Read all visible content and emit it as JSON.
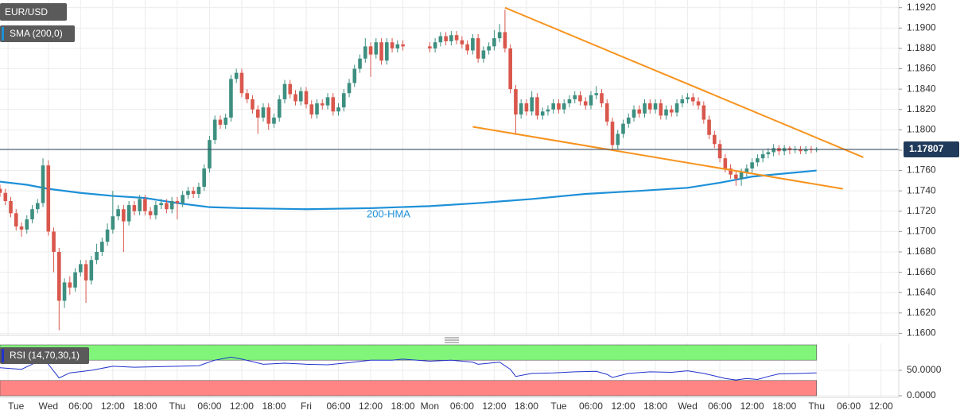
{
  "chart_data": [
    {
      "type": "candlestick",
      "title": "EUR/USD",
      "indicator_label": "SMA (200,0)",
      "xlim": [
        -9,
        158.3
      ],
      "ylim": [
        1.1598,
        1.1926
      ],
      "xticks": [
        {
          "value": -7.5,
          "label": "Tue"
        },
        {
          "value": 0,
          "label": "Wed"
        },
        {
          "value": 6,
          "label": "06:00"
        },
        {
          "value": 12,
          "label": "12:00"
        },
        {
          "value": 18,
          "label": "18:00"
        },
        {
          "value": 24,
          "label": "Thu"
        },
        {
          "value": 30,
          "label": "06:00"
        },
        {
          "value": 36,
          "label": "12:00"
        },
        {
          "value": 42,
          "label": "18:00"
        },
        {
          "value": 48,
          "label": "Fri"
        },
        {
          "value": 54,
          "label": "06:00"
        },
        {
          "value": 60,
          "label": "12:00"
        },
        {
          "value": 66,
          "label": "18:00"
        },
        {
          "value": 71,
          "label": "Mon"
        },
        {
          "value": 77,
          "label": "06:00"
        },
        {
          "value": 83,
          "label": "12:00"
        },
        {
          "value": 89,
          "label": "18:00"
        },
        {
          "value": 95,
          "label": "Tue"
        },
        {
          "value": 101,
          "label": "06:00"
        },
        {
          "value": 107,
          "label": "12:00"
        },
        {
          "value": 113,
          "label": "18:00"
        },
        {
          "value": 119,
          "label": "Wed"
        },
        {
          "value": 125,
          "label": "06:00"
        },
        {
          "value": 131,
          "label": "12:00"
        },
        {
          "value": 137,
          "label": "18:00"
        },
        {
          "value": 143,
          "label": "Thu"
        },
        {
          "value": 149,
          "label": "06:00"
        },
        {
          "value": 155,
          "label": "12:00"
        }
      ],
      "yticks": [
        {
          "value": 1.16,
          "label": "1.1600"
        },
        {
          "value": 1.162,
          "label": "1.1620"
        },
        {
          "value": 1.164,
          "label": "1.1640"
        },
        {
          "value": 1.166,
          "label": "1.1660"
        },
        {
          "value": 1.168,
          "label": "1.1680"
        },
        {
          "value": 1.17,
          "label": "1.1700"
        },
        {
          "value": 1.172,
          "label": "1.1720"
        },
        {
          "value": 1.174,
          "label": "1.1740"
        },
        {
          "value": 1.176,
          "label": "1.1760"
        },
        {
          "value": 1.178,
          "label": "1.1780"
        },
        {
          "value": 1.18,
          "label": "1.1800"
        },
        {
          "value": 1.182,
          "label": "1.1820"
        },
        {
          "value": 1.184,
          "label": "1.1840"
        },
        {
          "value": 1.186,
          "label": "1.1860"
        },
        {
          "value": 1.188,
          "label": "1.1880"
        },
        {
          "value": 1.19,
          "label": "1.1900"
        },
        {
          "value": 1.192,
          "label": "1.1920"
        }
      ],
      "grid": true,
      "up_color": "#3d8f80",
      "down_color": "#d9574c",
      "last_price": 1.17807,
      "x": [
        -9,
        -8,
        -7,
        -6,
        -5,
        -4,
        -3,
        -2,
        -1,
        0,
        1,
        2,
        3,
        4,
        5,
        6,
        7,
        8,
        9,
        10,
        11,
        12,
        13,
        14,
        15,
        16,
        17,
        18,
        19,
        20,
        21,
        22,
        23,
        24,
        25,
        26,
        27,
        28,
        29,
        30,
        31,
        32,
        33,
        34,
        35,
        36,
        37,
        38,
        39,
        40,
        41,
        42,
        43,
        44,
        45,
        46,
        47,
        48,
        49,
        50,
        51,
        52,
        53,
        54,
        55,
        56,
        57,
        58,
        59,
        60,
        61,
        62,
        63,
        64,
        65,
        66,
        71,
        72,
        73,
        74,
        75,
        76,
        77,
        78,
        79,
        80,
        81,
        82,
        83,
        84,
        85,
        86,
        87,
        88,
        89,
        90,
        91,
        92,
        93,
        94,
        95,
        96,
        97,
        98,
        99,
        100,
        101,
        102,
        103,
        104,
        105,
        106,
        107,
        108,
        109,
        110,
        111,
        112,
        113,
        114,
        115,
        116,
        117,
        118,
        119,
        120,
        121,
        122,
        123,
        124,
        125,
        126,
        127,
        128,
        129,
        130,
        131,
        132,
        133,
        134,
        135,
        136,
        137,
        138,
        139,
        140,
        141,
        142,
        143
      ],
      "open": [
        1.1742,
        1.1738,
        1.173,
        1.1718,
        1.1705,
        1.1702,
        1.1712,
        1.1722,
        1.1728,
        1.1765,
        1.17,
        1.168,
        1.1632,
        1.165,
        1.1645,
        1.166,
        1.1668,
        1.1652,
        1.1672,
        1.168,
        1.169,
        1.1702,
        1.1715,
        1.1722,
        1.171,
        1.1726,
        1.172,
        1.1732,
        1.172,
        1.1716,
        1.1726,
        1.1728,
        1.1722,
        1.173,
        1.1728,
        1.1736,
        1.174,
        1.1737,
        1.1744,
        1.1762,
        1.179,
        1.181,
        1.1805,
        1.1812,
        1.185,
        1.1856,
        1.1836,
        1.183,
        1.182,
        1.1812,
        1.1822,
        1.1806,
        1.1812,
        1.183,
        1.1845,
        1.1835,
        1.1828,
        1.1838,
        1.1825,
        1.1815,
        1.1826,
        1.1824,
        1.1832,
        1.1818,
        1.1822,
        1.1836,
        1.1846,
        1.186,
        1.187,
        1.1882,
        1.1874,
        1.1886,
        1.1868,
        1.1886,
        1.188,
        1.1884,
        1.1882,
        1.188,
        1.1886,
        1.1892,
        1.1887,
        1.1893,
        1.1888,
        1.1884,
        1.1878,
        1.189,
        1.187,
        1.1878,
        1.1882,
        1.189,
        1.1896,
        1.188,
        1.184,
        1.1815,
        1.1826,
        1.1818,
        1.1832,
        1.1814,
        1.1818,
        1.182,
        1.1826,
        1.182,
        1.1826,
        1.183,
        1.1834,
        1.1828,
        1.1824,
        1.1834,
        1.1836,
        1.1826,
        1.1808,
        1.1785,
        1.1796,
        1.1806,
        1.1812,
        1.182,
        1.1816,
        1.1826,
        1.182,
        1.1826,
        1.1814,
        1.182,
        1.1817,
        1.1826,
        1.183,
        1.1832,
        1.1828,
        1.1824,
        1.181,
        1.1795,
        1.1786,
        1.1772,
        1.1762,
        1.1756,
        1.1752,
        1.1758,
        1.1762,
        1.1768,
        1.1772,
        1.1776,
        1.1778,
        1.1782,
        1.1779,
        1.1782,
        1.178,
        1.1781,
        1.1779,
        1.1781,
        1.178
      ],
      "high": [
        1.1746,
        1.1742,
        1.1734,
        1.1722,
        1.1709,
        1.1716,
        1.1726,
        1.1732,
        1.1772,
        1.177,
        1.1704,
        1.1684,
        1.1654,
        1.1656,
        1.1664,
        1.1672,
        1.1672,
        1.1676,
        1.1688,
        1.1694,
        1.1708,
        1.174,
        1.1726,
        1.1726,
        1.173,
        1.173,
        1.1736,
        1.1736,
        1.1724,
        1.173,
        1.1732,
        1.1732,
        1.1734,
        1.1734,
        1.174,
        1.1744,
        1.1744,
        1.1748,
        1.1766,
        1.1794,
        1.1814,
        1.1814,
        1.1816,
        1.1854,
        1.186,
        1.186,
        1.184,
        1.1834,
        1.1824,
        1.1826,
        1.1826,
        1.1816,
        1.1834,
        1.1849,
        1.1849,
        1.1839,
        1.1842,
        1.1842,
        1.1829,
        1.183,
        1.183,
        1.1836,
        1.1836,
        1.1826,
        1.184,
        1.185,
        1.1864,
        1.1874,
        1.189,
        1.1886,
        1.189,
        1.189,
        1.189,
        1.189,
        1.1888,
        1.1888,
        1.1886,
        1.189,
        1.1896,
        1.1896,
        1.1897,
        1.1897,
        1.1892,
        1.1888,
        1.1894,
        1.1894,
        1.1882,
        1.1886,
        1.1898,
        1.1904,
        1.1918,
        1.1884,
        1.1844,
        1.183,
        1.183,
        1.1838,
        1.1836,
        1.1822,
        1.1824,
        1.183,
        1.183,
        1.183,
        1.1834,
        1.1838,
        1.1838,
        1.1832,
        1.1838,
        1.1843,
        1.184,
        1.183,
        1.1812,
        1.18,
        1.181,
        1.1816,
        1.1824,
        1.1824,
        1.183,
        1.183,
        1.183,
        1.183,
        1.1824,
        1.1824,
        1.183,
        1.1834,
        1.1836,
        1.1836,
        1.1832,
        1.1828,
        1.1814,
        1.1799,
        1.179,
        1.1776,
        1.1766,
        1.176,
        1.1762,
        1.1766,
        1.1772,
        1.1776,
        1.178,
        1.1782,
        1.1786,
        1.1785,
        1.1785,
        1.1784,
        1.1784,
        1.1784,
        1.1784,
        1.1784,
        1.1783
      ],
      "low": [
        1.1734,
        1.1726,
        1.1714,
        1.1701,
        1.1695,
        1.1698,
        1.1708,
        1.1718,
        1.1724,
        1.1696,
        1.166,
        1.1603,
        1.1625,
        1.1638,
        1.1641,
        1.1656,
        1.163,
        1.1648,
        1.1668,
        1.1676,
        1.1686,
        1.1698,
        1.1711,
        1.168,
        1.1706,
        1.1716,
        1.1716,
        1.1716,
        1.1712,
        1.1712,
        1.1722,
        1.1718,
        1.1718,
        1.1712,
        1.1724,
        1.1732,
        1.1733,
        1.1733,
        1.174,
        1.1758,
        1.1786,
        1.1801,
        1.1801,
        1.1808,
        1.1846,
        1.1832,
        1.1826,
        1.1816,
        1.1796,
        1.1808,
        1.18,
        1.1802,
        1.1808,
        1.1826,
        1.1831,
        1.1824,
        1.1824,
        1.1821,
        1.1811,
        1.1811,
        1.182,
        1.182,
        1.1814,
        1.1814,
        1.1818,
        1.1832,
        1.1842,
        1.1856,
        1.1866,
        1.1852,
        1.187,
        1.1864,
        1.1864,
        1.1876,
        1.1876,
        1.1878,
        1.1876,
        1.1876,
        1.1882,
        1.1883,
        1.1883,
        1.1884,
        1.188,
        1.1874,
        1.1874,
        1.1866,
        1.1866,
        1.1874,
        1.1878,
        1.1886,
        1.1876,
        1.1836,
        1.1795,
        1.1811,
        1.1814,
        1.1814,
        1.181,
        1.181,
        1.1814,
        1.1816,
        1.1816,
        1.1816,
        1.1822,
        1.1826,
        1.1824,
        1.182,
        1.182,
        1.183,
        1.1822,
        1.1804,
        1.178,
        1.1781,
        1.1792,
        1.1802,
        1.1808,
        1.1812,
        1.1812,
        1.1816,
        1.1816,
        1.181,
        1.181,
        1.1813,
        1.1813,
        1.1822,
        1.1826,
        1.1824,
        1.182,
        1.1806,
        1.1791,
        1.1782,
        1.1768,
        1.1758,
        1.1752,
        1.1745,
        1.1745,
        1.1754,
        1.1758,
        1.1764,
        1.1768,
        1.1772,
        1.1774,
        1.1775,
        1.1775,
        1.1776,
        1.1777,
        1.1776,
        1.1776,
        1.1777,
        1.1778
      ],
      "close": [
        1.1738,
        1.173,
        1.1718,
        1.1705,
        1.1702,
        1.1712,
        1.1722,
        1.1728,
        1.1765,
        1.17,
        1.168,
        1.1632,
        1.165,
        1.1645,
        1.166,
        1.1668,
        1.1652,
        1.1672,
        1.168,
        1.169,
        1.1702,
        1.1715,
        1.1722,
        1.171,
        1.1726,
        1.172,
        1.1732,
        1.172,
        1.1716,
        1.1726,
        1.1728,
        1.1722,
        1.173,
        1.1728,
        1.1736,
        1.174,
        1.1737,
        1.1744,
        1.1762,
        1.179,
        1.181,
        1.1805,
        1.1812,
        1.185,
        1.1856,
        1.1836,
        1.183,
        1.182,
        1.1812,
        1.1822,
        1.1806,
        1.1812,
        1.183,
        1.1845,
        1.1835,
        1.1828,
        1.1838,
        1.1825,
        1.1815,
        1.1826,
        1.1824,
        1.1832,
        1.1818,
        1.1822,
        1.1836,
        1.1846,
        1.186,
        1.187,
        1.1882,
        1.1874,
        1.1886,
        1.1868,
        1.1886,
        1.188,
        1.1884,
        1.1882,
        1.188,
        1.1886,
        1.1892,
        1.1887,
        1.1893,
        1.1888,
        1.1884,
        1.1878,
        1.189,
        1.187,
        1.1878,
        1.1882,
        1.189,
        1.1896,
        1.188,
        1.184,
        1.1815,
        1.1826,
        1.1818,
        1.1832,
        1.1814,
        1.1818,
        1.182,
        1.1826,
        1.182,
        1.1826,
        1.183,
        1.1834,
        1.1828,
        1.1824,
        1.1834,
        1.1836,
        1.1826,
        1.1808,
        1.1785,
        1.1796,
        1.1806,
        1.1812,
        1.182,
        1.1816,
        1.1826,
        1.182,
        1.1826,
        1.1814,
        1.182,
        1.1817,
        1.1826,
        1.183,
        1.1832,
        1.1828,
        1.1824,
        1.181,
        1.1795,
        1.1786,
        1.1772,
        1.1762,
        1.1756,
        1.1752,
        1.1758,
        1.1762,
        1.1768,
        1.1772,
        1.1776,
        1.1778,
        1.1782,
        1.1779,
        1.1782,
        1.178,
        1.1781,
        1.1779,
        1.1781,
        1.178,
        1.1781
      ],
      "hma": {
        "name": "200-HMA",
        "color": "#1e90d8",
        "x": [
          -9,
          -4,
          0,
          6,
          12,
          18,
          24,
          30,
          36,
          48,
          60,
          71,
          80,
          90,
          100,
          110,
          119,
          125,
          131,
          137,
          143
        ],
        "values": [
          1.1749,
          1.1746,
          1.1742,
          1.1738,
          1.1735,
          1.1733,
          1.1728,
          1.1724,
          1.1723,
          1.1722,
          1.1723,
          1.1725,
          1.1728,
          1.1732,
          1.1737,
          1.174,
          1.1743,
          1.1748,
          1.1754,
          1.1757,
          1.176
        ]
      },
      "trend_lines": [
        {
          "color": "#f7931e",
          "x": [
            85,
            151.7
          ],
          "values": [
            1.192,
            1.1773
          ]
        },
        {
          "color": "#f7931e",
          "x": [
            79,
            147.9
          ],
          "values": [
            1.1803,
            1.1742
          ]
        }
      ]
    },
    {
      "type": "line",
      "title": "RSI (14,70,30,1)",
      "color": "#2233cc",
      "xlim": [
        -9,
        158.3
      ],
      "ylim": [
        0,
        100
      ],
      "yticks": [
        {
          "value": 0,
          "label": "0.0000"
        },
        {
          "value": 50,
          "label": "50.0000"
        }
      ],
      "bands": [
        {
          "from": 70,
          "to": 100,
          "color": "#80f57a"
        },
        {
          "from": 0,
          "to": 30,
          "color": "#ff8585"
        }
      ],
      "x": [
        -9,
        -5,
        -1,
        0,
        2,
        4,
        8,
        12,
        16,
        20,
        24,
        28,
        31,
        34,
        36,
        40,
        44,
        48,
        52,
        56,
        60,
        64,
        66,
        71,
        75,
        79,
        80,
        84,
        86,
        87,
        90,
        94,
        98,
        102,
        104,
        105,
        108,
        112,
        116,
        119,
        122,
        124,
        126,
        128,
        130,
        132,
        134,
        136,
        140,
        143
      ],
      "values": [
        55,
        52,
        72,
        62,
        35,
        45,
        50,
        58,
        56,
        57,
        58,
        59,
        70,
        76,
        72,
        62,
        64,
        62,
        61,
        65,
        70,
        70,
        72,
        68,
        70,
        66,
        62,
        66,
        52,
        38,
        44,
        45,
        47,
        48,
        42,
        36,
        44,
        47,
        46,
        49,
        44,
        39,
        34,
        31,
        34,
        32,
        38,
        43,
        44,
        45
      ]
    }
  ]
}
